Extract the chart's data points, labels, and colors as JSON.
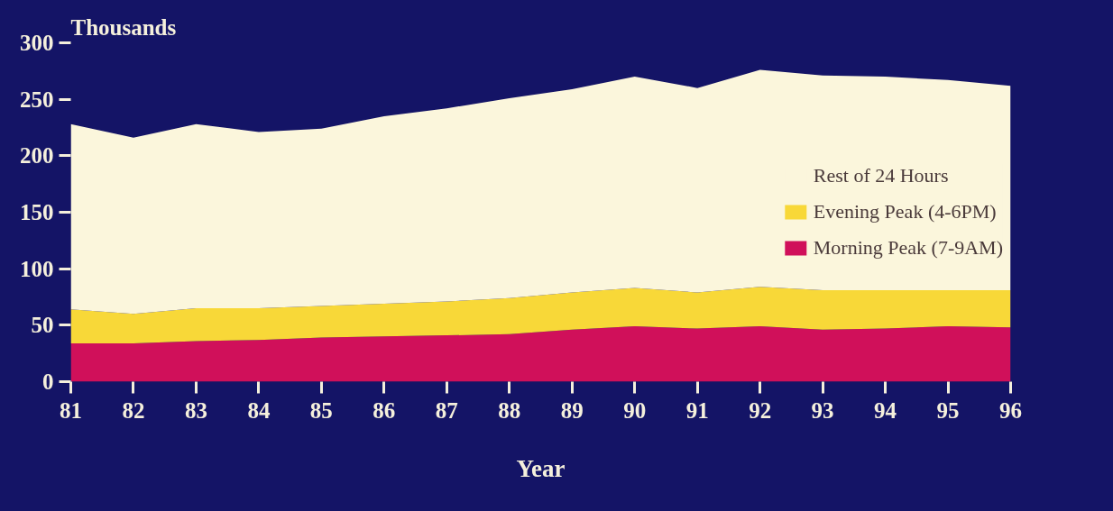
{
  "chart_data": {
    "type": "area",
    "stacked": true,
    "xlabel": "Year",
    "ylabel": "Thousands",
    "x": [
      81,
      82,
      83,
      84,
      85,
      86,
      87,
      88,
      89,
      90,
      91,
      92,
      93,
      94,
      95,
      96
    ],
    "xlim": [
      81,
      96
    ],
    "xticks": [
      81,
      82,
      83,
      84,
      85,
      86,
      87,
      88,
      89,
      90,
      91,
      92,
      93,
      94,
      95,
      96
    ],
    "ylim": [
      0,
      300
    ],
    "yticks": [
      0,
      50,
      100,
      150,
      200,
      250,
      300
    ],
    "series": [
      {
        "name": "Morning Peak (7-9AM)",
        "color": "#d0105a",
        "values": [
          34,
          34,
          36,
          37,
          39,
          40,
          41,
          42,
          46,
          49,
          47,
          49,
          46,
          47,
          49,
          48
        ]
      },
      {
        "name": "Evening Peak (4-6PM)",
        "color": "#f8d838",
        "values": [
          30,
          26,
          29,
          28,
          28,
          29,
          30,
          32,
          33,
          34,
          32,
          35,
          35,
          34,
          32,
          33
        ]
      },
      {
        "name": "Rest of 24 Hours",
        "color": "#fbf6dc",
        "values": [
          164,
          156,
          163,
          156,
          157,
          166,
          171,
          177,
          180,
          187,
          181,
          192,
          190,
          189,
          186,
          181
        ]
      }
    ],
    "grid": false,
    "legend": "right"
  }
}
